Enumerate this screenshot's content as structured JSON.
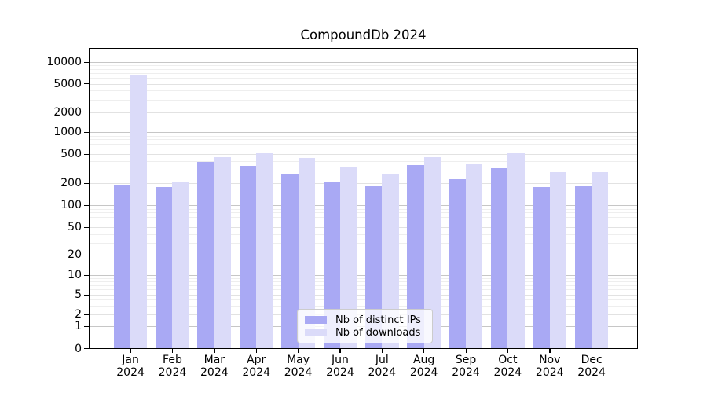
{
  "chart_data": {
    "type": "bar",
    "title": "CompoundDb 2024",
    "xlabel": "",
    "ylabel": "",
    "yscale": "symlog",
    "ylim": [
      0,
      16000
    ],
    "grid": true,
    "legend_position": "lower center",
    "yticks": [
      0,
      1,
      2,
      5,
      10,
      20,
      50,
      100,
      200,
      500,
      1000,
      2000,
      5000,
      10000
    ],
    "categories": [
      "Jan 2024",
      "Feb 2024",
      "Mar 2024",
      "Apr 2024",
      "May 2024",
      "Jun 2024",
      "Jul 2024",
      "Aug 2024",
      "Sep 2024",
      "Oct 2024",
      "Nov 2024",
      "Dec 2024"
    ],
    "series": [
      {
        "name": "Nb of distinct IPs",
        "color": "#a9a9f4",
        "values": [
          185,
          175,
          385,
          340,
          270,
          205,
          180,
          350,
          225,
          315,
          178,
          181
        ]
      },
      {
        "name": "Nb of downloads",
        "color": "#dbdbf9",
        "values": [
          6700,
          210,
          450,
          515,
          440,
          335,
          270,
          455,
          360,
          505,
          280,
          285
        ]
      }
    ]
  },
  "colors": {
    "major_grid": "#c6c6c6",
    "labeled_grid": "#e2e2e2",
    "minor_grid": "#eeeeee",
    "axis": "#000000"
  }
}
